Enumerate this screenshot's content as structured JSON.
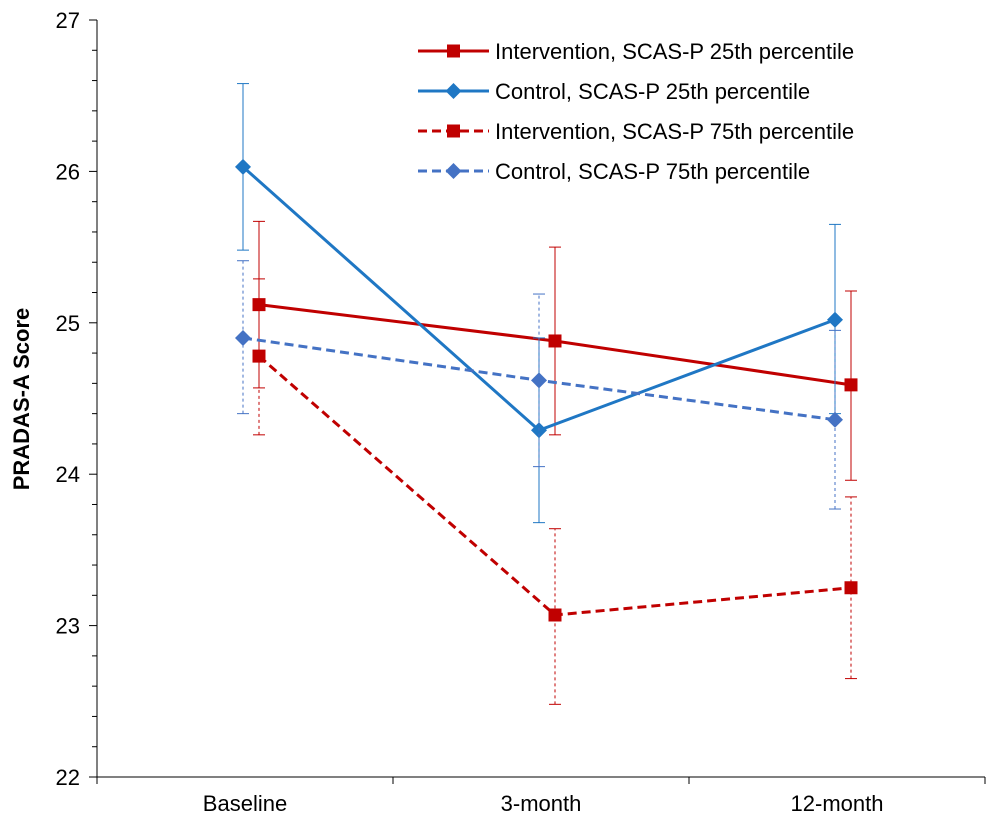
{
  "chart_data": {
    "type": "line",
    "title": "",
    "xlabel": "",
    "ylabel": "PRADAS-A Score",
    "categories": [
      "Baseline",
      "3-month",
      "12-month"
    ],
    "ylim": [
      22,
      27
    ],
    "yticks": [
      22,
      23,
      24,
      25,
      26,
      27
    ],
    "grid": false,
    "legend_position": "top-right",
    "series": [
      {
        "name": "Intervention, SCAS-P 25th percentile",
        "color": "#C00000",
        "dash": "solid",
        "marker": "square",
        "values": [
          25.12,
          24.88,
          24.59
        ],
        "error_low": [
          24.57,
          24.26,
          23.96
        ],
        "error_high": [
          25.67,
          25.5,
          25.21
        ]
      },
      {
        "name": "Control, SCAS-P 25th percentile",
        "color": "#1F77C4",
        "dash": "solid",
        "marker": "diamond",
        "values": [
          26.03,
          24.29,
          25.02
        ],
        "error_low": [
          25.48,
          23.68,
          24.4
        ],
        "error_high": [
          26.58,
          24.9,
          25.65
        ]
      },
      {
        "name": "Intervention, SCAS-P 75th percentile",
        "color": "#C00000",
        "dash": "dashed",
        "marker": "square",
        "values": [
          24.78,
          23.07,
          23.25
        ],
        "error_low": [
          24.26,
          22.48,
          22.65
        ],
        "error_high": [
          25.29,
          23.64,
          23.85
        ]
      },
      {
        "name": "Control, SCAS-P 75th percentile",
        "color": "#4472C4",
        "dash": "dashed",
        "marker": "diamond",
        "values": [
          24.9,
          24.62,
          24.36
        ],
        "error_low": [
          24.4,
          24.05,
          23.77
        ],
        "error_high": [
          25.41,
          25.19,
          24.95
        ]
      }
    ]
  }
}
